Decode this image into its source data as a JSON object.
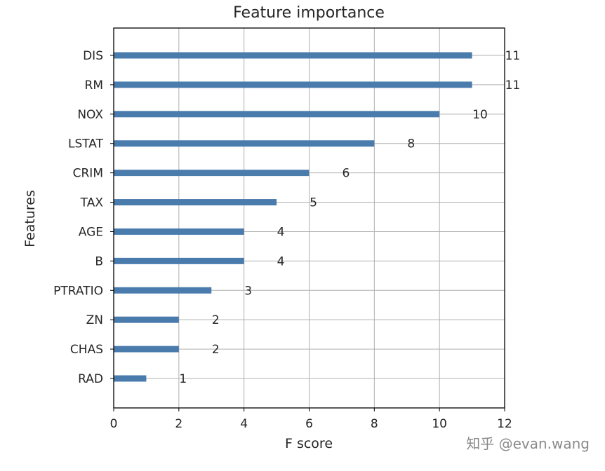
{
  "chart_data": {
    "type": "bar",
    "orientation": "horizontal",
    "title": "Feature importance",
    "xlabel": "F score",
    "ylabel": "Features",
    "xlim": [
      0,
      12
    ],
    "xticks": [
      0,
      2,
      4,
      6,
      8,
      10,
      12
    ],
    "grid": true,
    "bar_color": "#4a7bad",
    "categories": [
      "DIS",
      "RM",
      "NOX",
      "LSTAT",
      "CRIM",
      "TAX",
      "AGE",
      "B",
      "PTRATIO",
      "ZN",
      "CHAS",
      "RAD"
    ],
    "values": [
      11,
      11,
      10,
      8,
      6,
      5,
      4,
      4,
      3,
      2,
      2,
      1
    ]
  },
  "watermark": "知乎 @evan.wang"
}
